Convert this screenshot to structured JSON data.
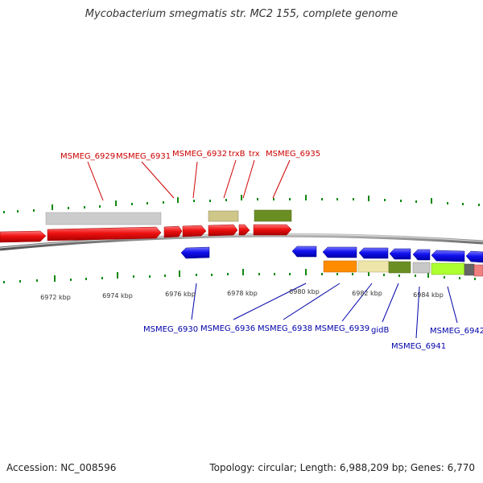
{
  "title": "Mycobacterium smegmatis str. MC2 155, complete genome",
  "footer": {
    "accession": "Accession: NC_008596",
    "summary": "Topology: circular; Length: 6,988,209 bp; Genes: 6,770"
  },
  "colors": {
    "forward_gene": "#ee1111",
    "reverse_gene": "#1111ee",
    "tick": "#118811",
    "backbone": "#777777",
    "label_forward": "#cc0000",
    "label_reverse": "#0000aa"
  },
  "axis": {
    "tick_labels": [
      "6972 kbp",
      "6974 kbp",
      "6976 kbp",
      "6978 kbp",
      "6980 kbp",
      "6982 kbp",
      "6984 kbp"
    ]
  },
  "top_labels": [
    "MSMEG_6929",
    "MSMEG_6931",
    "MSMEG_6932",
    "trxB",
    "trx",
    "MSMEG_6935"
  ],
  "bottom_labels": [
    "MSMEG_6930",
    "MSMEG_6936",
    "MSMEG_6938",
    "MSMEG_6939",
    "gidB",
    "MSMEG_6941",
    "MSMEG_6942"
  ]
}
